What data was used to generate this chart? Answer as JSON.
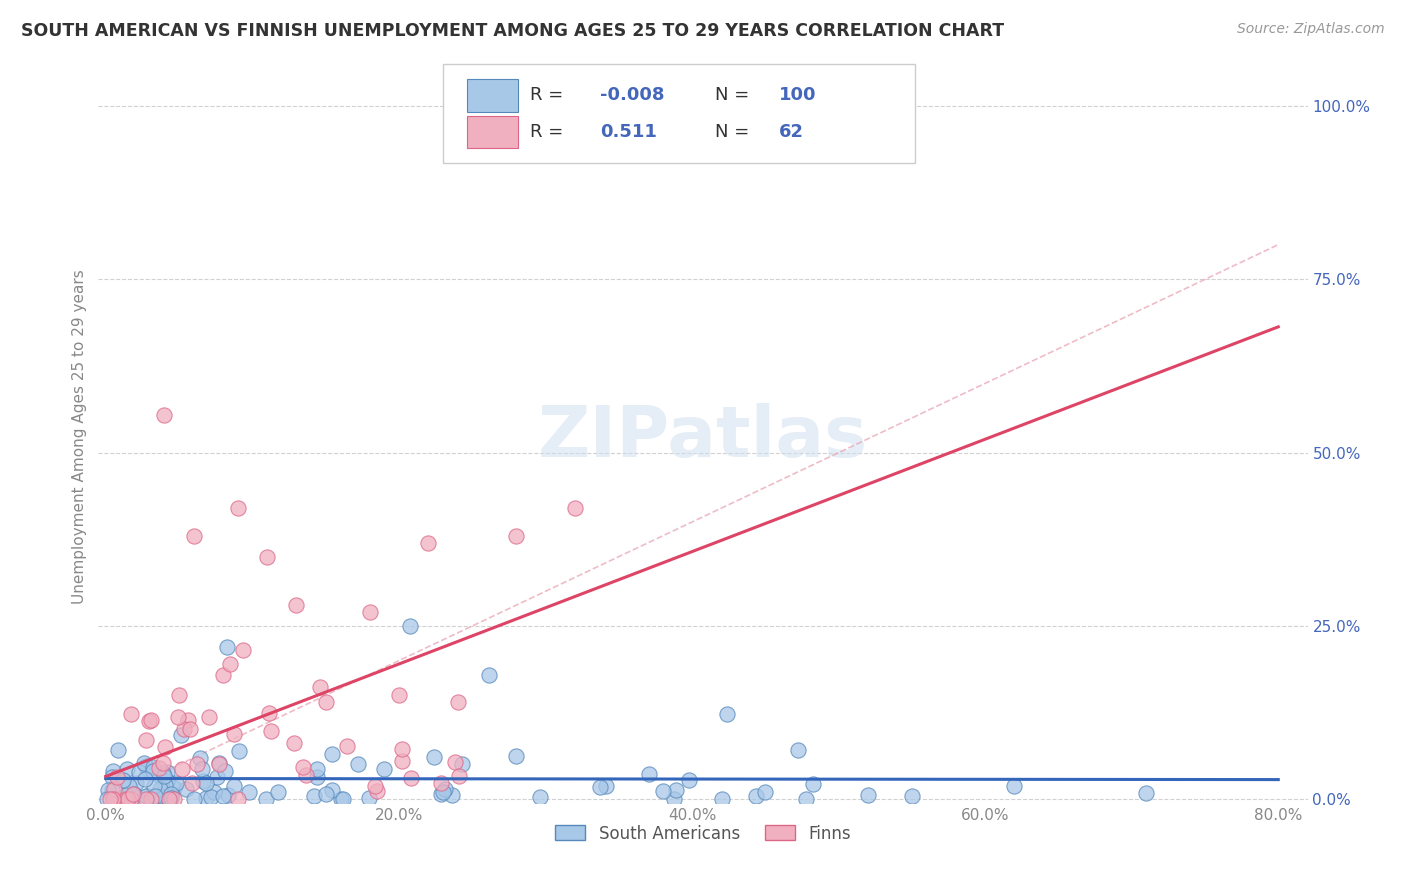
{
  "title": "SOUTH AMERICAN VS FINNISH UNEMPLOYMENT AMONG AGES 25 TO 29 YEARS CORRELATION CHART",
  "source": "Source: ZipAtlas.com",
  "ylabel": "Unemployment Among Ages 25 to 29 years",
  "xlabel_ticks": [
    "0.0%",
    "20.0%",
    "40.0%",
    "60.0%",
    "80.0%"
  ],
  "xlabel_vals": [
    0.0,
    0.2,
    0.4,
    0.6,
    0.8
  ],
  "ylabel_ticks": [
    "100.0%",
    "75.0%",
    "50.0%",
    "25.0%",
    "0.0%"
  ],
  "ylabel_vals": [
    1.0,
    0.75,
    0.5,
    0.25,
    0.0
  ],
  "legend_labels": [
    "South Americans",
    "Finns"
  ],
  "R_SA": -0.008,
  "N_SA": 100,
  "R_FI": 0.511,
  "N_FI": 62,
  "color_SA": "#a8c8e8",
  "color_FI": "#f0b0c0",
  "color_SA_edge": "#5588bb",
  "color_FI_edge": "#dd6688",
  "color_trend_SA": "#3366bb",
  "color_trend_FI": "#dd4466",
  "color_diag": "#e8a0b0",
  "watermark_color": "#d0dff0",
  "background_color": "#ffffff",
  "grid_color": "#cccccc",
  "legend_text_color": "#4466bb",
  "title_color": "#333333",
  "axis_color": "#888888"
}
